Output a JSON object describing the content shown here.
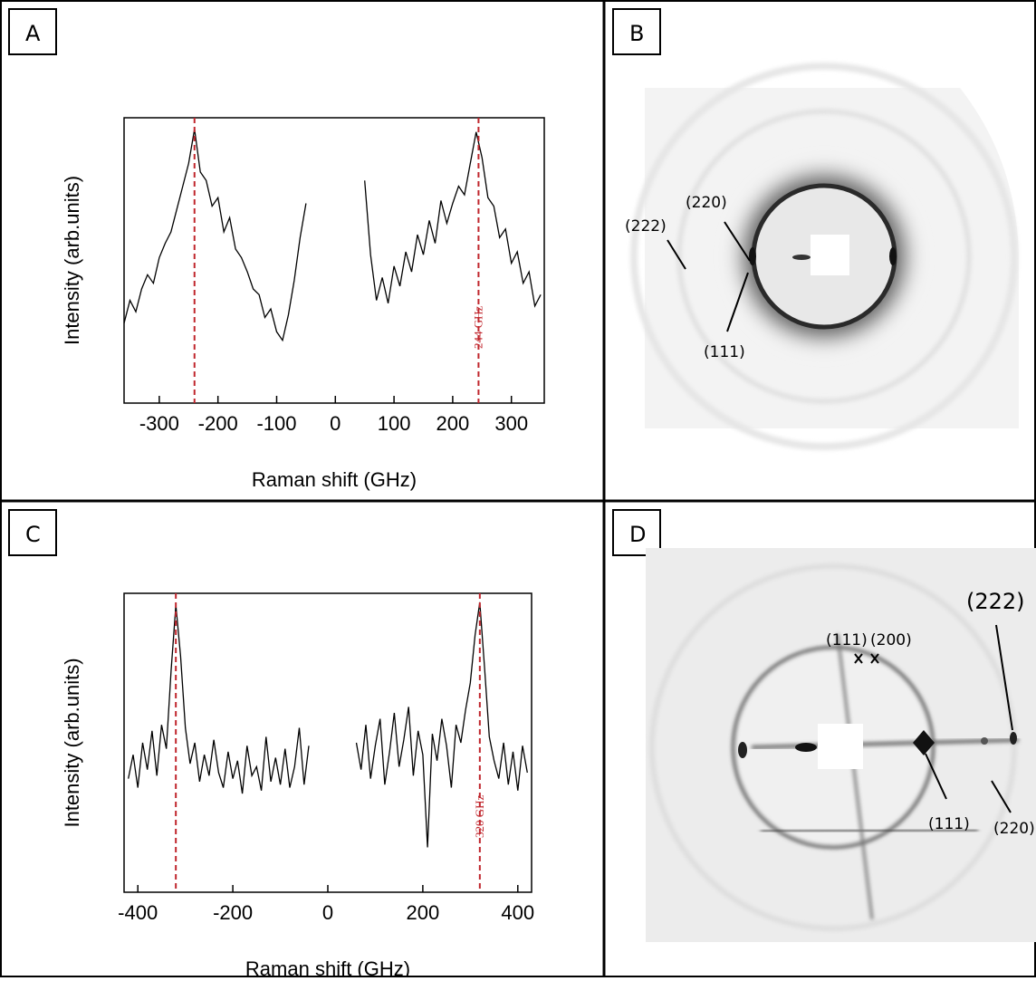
{
  "panel_labels": [
    "A",
    "B",
    "C",
    "D"
  ],
  "chart_data": [
    {
      "type": "line",
      "x_label": "Raman shift (GHz)",
      "y_label": "Intensity (arb.units)",
      "color": "#000000",
      "x": [
        -360,
        -350,
        -340,
        -330,
        -320,
        -310,
        -300,
        -290,
        -280,
        -270,
        -260,
        -250,
        -240,
        -230,
        -220,
        -210,
        -200,
        -190,
        -180,
        -170,
        -160,
        -150,
        -140,
        -130,
        -120,
        -110,
        -100,
        -90,
        -80,
        -70,
        -60,
        -50,
        0,
        50,
        60,
        70,
        80,
        90,
        100,
        110,
        120,
        130,
        140,
        150,
        160,
        170,
        180,
        190,
        200,
        210,
        220,
        230,
        240,
        250,
        260,
        270,
        280,
        290,
        300,
        310,
        320,
        330,
        340,
        350
      ],
      "values": [
        2.8,
        3.6,
        3.2,
        4.0,
        4.5,
        4.2,
        5.1,
        5.6,
        6.0,
        6.8,
        7.6,
        8.4,
        9.6,
        8.1,
        7.8,
        6.9,
        7.2,
        6.0,
        6.5,
        5.4,
        5.1,
        4.6,
        4.0,
        3.8,
        3.0,
        3.3,
        2.5,
        2.2,
        3.1,
        4.3,
        5.8,
        7.0,
        null,
        7.8,
        5.2,
        3.6,
        4.4,
        3.5,
        4.8,
        4.1,
        5.3,
        4.6,
        5.9,
        5.2,
        6.4,
        5.6,
        7.1,
        6.3,
        7.0,
        7.6,
        7.3,
        8.4,
        9.5,
        8.6,
        7.2,
        6.9,
        5.8,
        6.1,
        4.9,
        5.3,
        4.2,
        4.6,
        3.4,
        3.8
      ],
      "xlim": [
        -360,
        356
      ],
      "xticks": [
        -300,
        -200,
        -100,
        0,
        100,
        200,
        300
      ],
      "ylim": [
        0,
        10
      ],
      "reference_lines": [
        {
          "x": -240,
          "color": "#c0262d"
        },
        {
          "x": 244,
          "color": "#c0262d",
          "label": "244 GHz"
        }
      ]
    },
    {
      "type": "line",
      "x_label": "Raman shift (GHz)",
      "y_label": "Intensity (arb.units)",
      "color": "#000000",
      "x": [
        -420,
        -410,
        -400,
        -390,
        -380,
        -370,
        -360,
        -350,
        -340,
        -330,
        -320,
        -310,
        -300,
        -290,
        -280,
        -270,
        -260,
        -250,
        -240,
        -230,
        -220,
        -210,
        -200,
        -190,
        -180,
        -170,
        -160,
        -150,
        -140,
        -130,
        -120,
        -110,
        -100,
        -90,
        -80,
        -70,
        -60,
        -50,
        -40,
        0,
        60,
        70,
        80,
        90,
        100,
        110,
        120,
        130,
        140,
        150,
        160,
        170,
        180,
        190,
        200,
        210,
        220,
        230,
        240,
        250,
        260,
        270,
        280,
        290,
        300,
        310,
        320,
        330,
        340,
        350,
        360,
        370,
        380,
        390,
        400,
        410,
        420
      ],
      "values": [
        3.8,
        4.6,
        3.5,
        5.0,
        4.1,
        5.4,
        3.9,
        5.6,
        4.8,
        7.4,
        9.6,
        7.9,
        5.5,
        4.3,
        5.0,
        3.7,
        4.6,
        3.9,
        5.1,
        4.0,
        3.5,
        4.7,
        3.8,
        4.4,
        3.3,
        4.9,
        3.9,
        4.2,
        3.4,
        5.2,
        3.7,
        4.5,
        3.6,
        4.8,
        3.5,
        4.2,
        5.5,
        3.6,
        4.9,
        null,
        5.0,
        4.1,
        5.6,
        3.8,
        4.9,
        5.8,
        3.6,
        4.7,
        6.0,
        4.2,
        5.1,
        6.2,
        3.9,
        5.4,
        4.6,
        1.5,
        5.3,
        4.4,
        5.8,
        4.9,
        3.5,
        5.6,
        5.0,
        6.1,
        7.0,
        8.6,
        9.7,
        7.5,
        5.2,
        4.4,
        3.8,
        5.0,
        3.6,
        4.7,
        3.4,
        4.9,
        4.0
      ],
      "xlim": [
        -429,
        429
      ],
      "xticks": [
        -400,
        -200,
        0,
        200,
        400
      ],
      "ylim": [
        0,
        10
      ],
      "reference_lines": [
        {
          "x": -320,
          "color": "#c0262d"
        },
        {
          "x": 320,
          "color": "#c0262d",
          "label": "320 GHz"
        }
      ]
    }
  ],
  "diffraction": [
    {
      "labels": [
        "(222)",
        "(220)",
        "(111)"
      ]
    },
    {
      "labels": [
        "(111)",
        "(200)",
        "(222)",
        "(111)",
        "(220)"
      ]
    }
  ]
}
